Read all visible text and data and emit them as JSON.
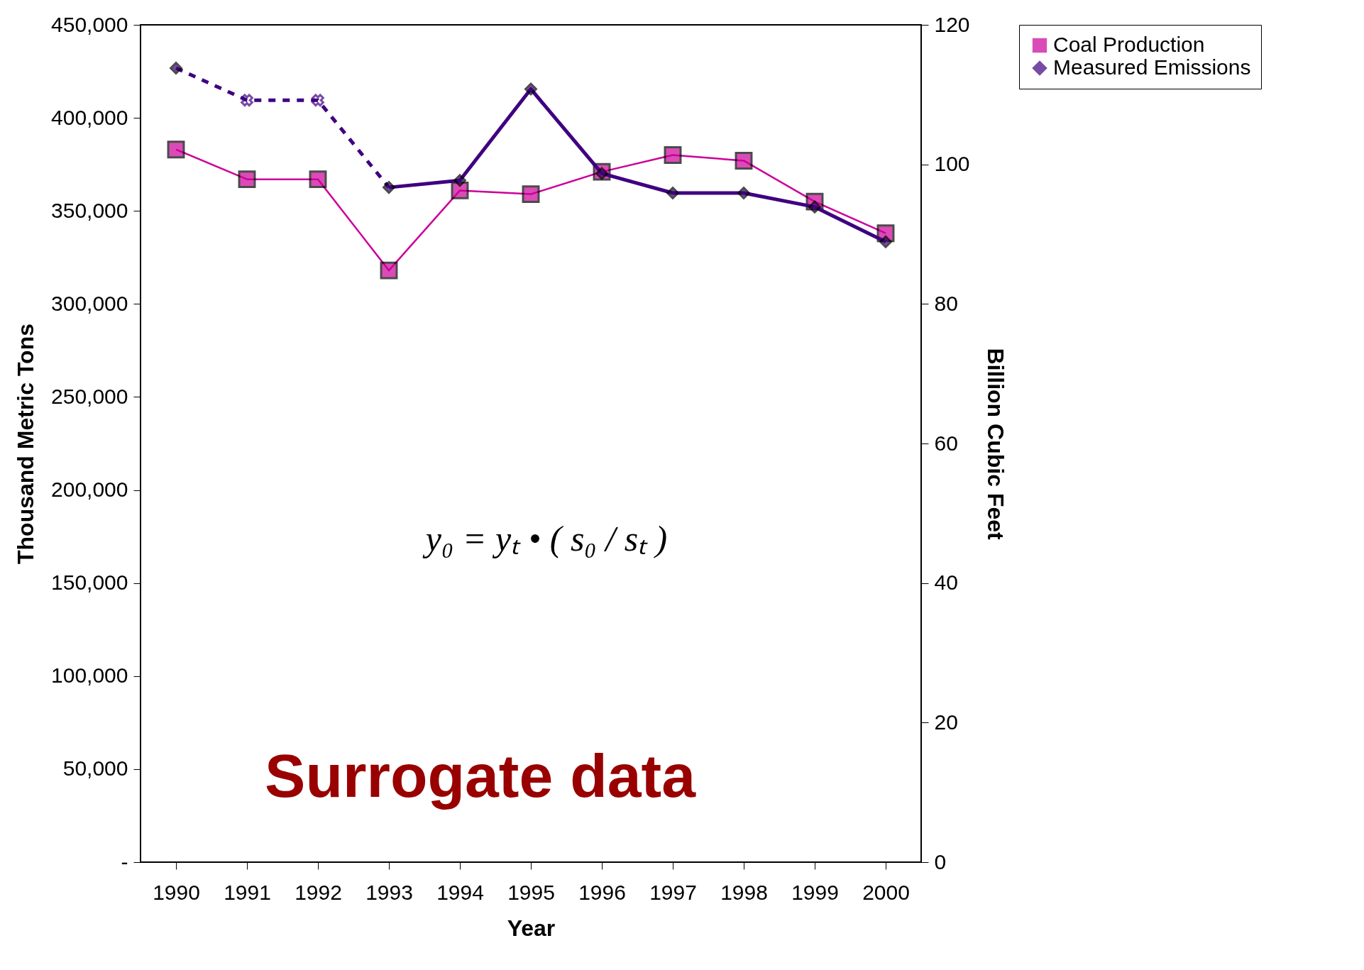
{
  "chart_data": {
    "type": "line",
    "xlabel": "Year",
    "ylabel": "Thousand Metric Tons",
    "y2label": "Billion Cubic Feet",
    "categories": [
      "1990",
      "1991",
      "1992",
      "1993",
      "1994",
      "1995",
      "1996",
      "1997",
      "1998",
      "1999",
      "2000"
    ],
    "series": [
      {
        "name": "Coal Production",
        "color": "#cc0099",
        "marker": "square",
        "values": [
          383000,
          367000,
          367000,
          318000,
          361000,
          359000,
          371000,
          380000,
          377000,
          355000,
          338000
        ]
      },
      {
        "name": "Measured Emissions",
        "color": "#3f0080",
        "marker": "diamond",
        "axis": "y2",
        "values": [
          113.8,
          null,
          null,
          96.7,
          97.7,
          110.8,
          98.7,
          95.9,
          95.9,
          93.9,
          88.9
        ]
      },
      {
        "color": "#3f0080",
        "marker": "cross",
        "line_style": "dashed",
        "axis": "y2",
        "values": [
          113.8,
          109.2,
          109.2,
          96.7,
          null,
          null,
          null,
          null,
          null,
          null,
          null
        ]
      }
    ],
    "ylim": [
      0,
      450000
    ],
    "yticks": [
      {
        "value": 0,
        "label": "-"
      },
      {
        "value": 50000,
        "label": "50,000"
      },
      {
        "value": 100000,
        "label": "100,000"
      },
      {
        "value": 150000,
        "label": "150,000"
      },
      {
        "value": 200000,
        "label": "200,000"
      },
      {
        "value": 250000,
        "label": "250,000"
      },
      {
        "value": 300000,
        "label": "300,000"
      },
      {
        "value": 350000,
        "label": "350,000"
      },
      {
        "value": 400000,
        "label": "400,000"
      },
      {
        "value": 450000,
        "label": "450,000"
      }
    ],
    "y2lim": [
      0,
      120
    ],
    "y2ticks": [
      0,
      20,
      40,
      60,
      80,
      100,
      120
    ],
    "grid": false,
    "legend": "right",
    "annotations": [
      "y₀ = yₜ • ( s₀ / sₜ )",
      "Surrogate data"
    ]
  }
}
